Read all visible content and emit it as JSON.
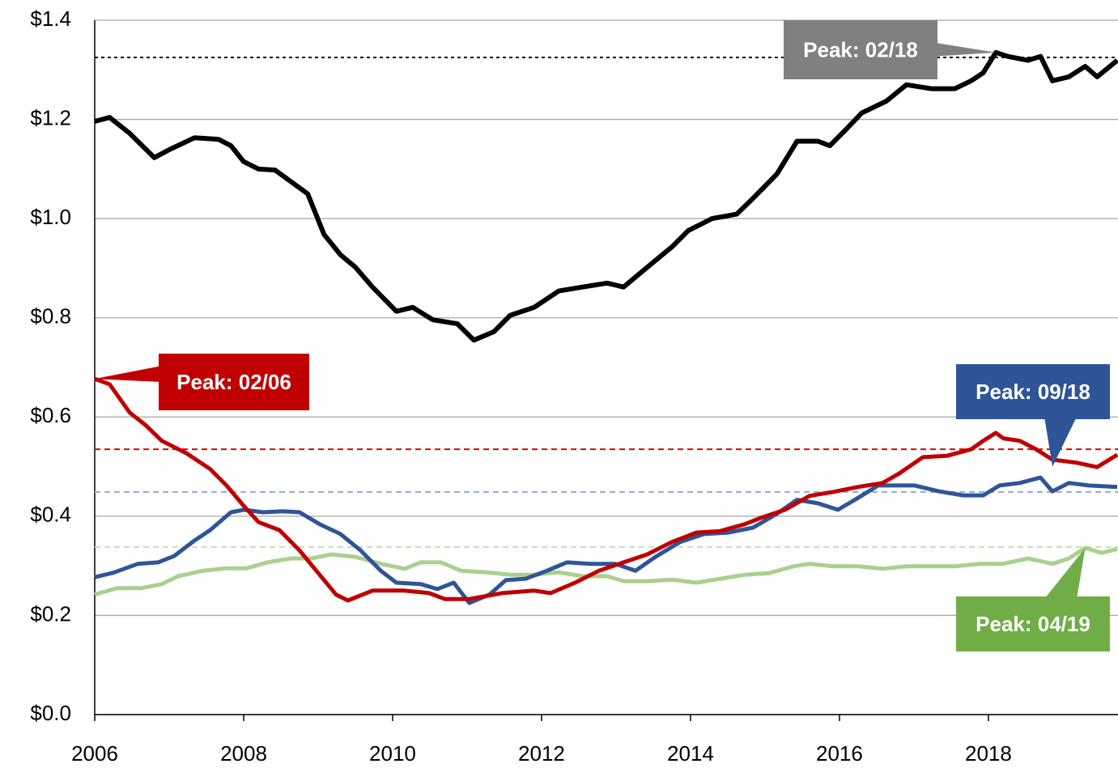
{
  "chart_data": {
    "type": "line",
    "xlim": [
      2006,
      2019.74
    ],
    "xticks": [
      2006,
      2008,
      2010,
      2012,
      2014,
      2016,
      2018
    ],
    "ylim": [
      0,
      1.4
    ],
    "yticks": [
      {
        "value": 0,
        "label": "$0.0"
      },
      {
        "value": 0.2,
        "label": "$0.2"
      },
      {
        "value": 0.4,
        "label": "$0.4"
      },
      {
        "value": 0.6,
        "label": "$0.6"
      },
      {
        "value": 0.8,
        "label": "$0.8"
      },
      {
        "value": 1.0,
        "label": "$1.0"
      },
      {
        "value": 1.2,
        "label": "$1.2"
      },
      {
        "value": 1.4,
        "label": "$1.4"
      }
    ],
    "grid": true,
    "series": [
      {
        "color": "#000000",
        "x": [
          2006.0,
          2006.2,
          2006.47,
          2006.8,
          2007.0,
          2007.34,
          2007.66,
          2007.83,
          2008.0,
          2008.2,
          2008.42,
          2008.64,
          2008.86,
          2009.08,
          2009.3,
          2009.5,
          2009.73,
          2010.05,
          2010.27,
          2010.54,
          2010.87,
          2011.09,
          2011.36,
          2011.58,
          2011.9,
          2012.23,
          2012.55,
          2012.88,
          2013.1,
          2013.42,
          2013.75,
          2013.97,
          2014.29,
          2014.62,
          2014.84,
          2015.16,
          2015.43,
          2015.71,
          2015.87,
          2016.09,
          2016.3,
          2016.63,
          2016.9,
          2017.23,
          2017.55,
          2017.77,
          2017.93,
          2018.1,
          2018.26,
          2018.53,
          2018.7,
          2018.86,
          2019.08,
          2019.3,
          2019.46,
          2019.73
        ],
        "values": [
          1.196,
          1.204,
          1.172,
          1.123,
          1.139,
          1.163,
          1.16,
          1.147,
          1.115,
          1.1,
          1.098,
          1.074,
          1.05,
          0.968,
          0.927,
          0.902,
          0.862,
          0.813,
          0.821,
          0.796,
          0.788,
          0.755,
          0.772,
          0.805,
          0.821,
          0.854,
          0.862,
          0.87,
          0.862,
          0.902,
          0.943,
          0.976,
          1.0,
          1.009,
          1.041,
          1.09,
          1.156,
          1.156,
          1.147,
          1.18,
          1.213,
          1.237,
          1.27,
          1.262,
          1.262,
          1.278,
          1.294,
          1.335,
          1.327,
          1.319,
          1.327,
          1.278,
          1.286,
          1.307,
          1.286,
          1.319
        ]
      },
      {
        "color": "#c00000",
        "x": [
          2006.0,
          2006.2,
          2006.47,
          2006.68,
          2006.9,
          2007.23,
          2007.55,
          2007.77,
          2008.0,
          2008.2,
          2008.48,
          2008.75,
          2009.02,
          2009.24,
          2009.4,
          2009.73,
          2010.16,
          2010.49,
          2010.7,
          2011.03,
          2011.47,
          2011.9,
          2012.12,
          2012.45,
          2012.77,
          2013.1,
          2013.42,
          2013.75,
          2014.08,
          2014.4,
          2014.73,
          2014.95,
          2015.27,
          2015.6,
          2015.92,
          2016.25,
          2016.58,
          2016.8,
          2017.12,
          2017.45,
          2017.77,
          2017.93,
          2018.1,
          2018.2,
          2018.42,
          2018.64,
          2018.86,
          2019.18,
          2019.46,
          2019.73
        ],
        "values": [
          0.677,
          0.666,
          0.609,
          0.584,
          0.552,
          0.527,
          0.495,
          0.462,
          0.421,
          0.388,
          0.372,
          0.331,
          0.282,
          0.242,
          0.23,
          0.25,
          0.25,
          0.245,
          0.233,
          0.233,
          0.245,
          0.25,
          0.245,
          0.266,
          0.29,
          0.307,
          0.323,
          0.348,
          0.367,
          0.37,
          0.384,
          0.397,
          0.413,
          0.441,
          0.449,
          0.459,
          0.467,
          0.486,
          0.519,
          0.522,
          0.535,
          0.552,
          0.568,
          0.557,
          0.552,
          0.535,
          0.514,
          0.508,
          0.499,
          0.524
        ]
      },
      {
        "color": "#2e5597",
        "x": [
          2006.0,
          2006.25,
          2006.58,
          2006.85,
          2007.07,
          2007.34,
          2007.55,
          2007.83,
          2008.0,
          2008.26,
          2008.53,
          2008.75,
          2009.02,
          2009.3,
          2009.57,
          2009.84,
          2010.05,
          2010.38,
          2010.6,
          2010.82,
          2011.03,
          2011.3,
          2011.52,
          2011.79,
          2012.07,
          2012.34,
          2012.66,
          2012.99,
          2013.26,
          2013.53,
          2013.86,
          2014.18,
          2014.51,
          2014.84,
          2015.16,
          2015.43,
          2015.71,
          2015.98,
          2016.25,
          2016.52,
          2016.8,
          2017.01,
          2017.34,
          2017.66,
          2017.93,
          2018.15,
          2018.42,
          2018.7,
          2018.86,
          2019.08,
          2019.35,
          2019.73
        ],
        "values": [
          0.277,
          0.286,
          0.304,
          0.307,
          0.32,
          0.351,
          0.372,
          0.408,
          0.413,
          0.408,
          0.41,
          0.408,
          0.384,
          0.364,
          0.331,
          0.29,
          0.266,
          0.263,
          0.253,
          0.266,
          0.225,
          0.242,
          0.271,
          0.274,
          0.29,
          0.307,
          0.304,
          0.304,
          0.29,
          0.318,
          0.348,
          0.364,
          0.367,
          0.377,
          0.405,
          0.433,
          0.426,
          0.413,
          0.437,
          0.462,
          0.462,
          0.462,
          0.45,
          0.442,
          0.442,
          0.462,
          0.467,
          0.478,
          0.45,
          0.467,
          0.462,
          0.459
        ]
      },
      {
        "color": "#a9d18e",
        "x": [
          2006.0,
          2006.3,
          2006.63,
          2006.9,
          2007.12,
          2007.45,
          2007.77,
          2008.04,
          2008.32,
          2008.64,
          2008.91,
          2009.18,
          2009.5,
          2009.84,
          2010.16,
          2010.38,
          2010.65,
          2010.92,
          2011.25,
          2011.58,
          2011.9,
          2012.23,
          2012.55,
          2012.88,
          2013.1,
          2013.42,
          2013.75,
          2014.08,
          2014.4,
          2014.73,
          2015.05,
          2015.38,
          2015.6,
          2015.92,
          2016.25,
          2016.58,
          2016.9,
          2017.23,
          2017.55,
          2017.88,
          2018.2,
          2018.53,
          2018.86,
          2019.08,
          2019.3,
          2019.52,
          2019.73
        ],
        "values": [
          0.242,
          0.255,
          0.255,
          0.263,
          0.279,
          0.29,
          0.295,
          0.295,
          0.307,
          0.315,
          0.315,
          0.323,
          0.318,
          0.304,
          0.294,
          0.307,
          0.307,
          0.29,
          0.287,
          0.282,
          0.282,
          0.287,
          0.279,
          0.279,
          0.269,
          0.269,
          0.272,
          0.266,
          0.274,
          0.282,
          0.285,
          0.299,
          0.304,
          0.299,
          0.299,
          0.294,
          0.299,
          0.299,
          0.299,
          0.304,
          0.304,
          0.315,
          0.304,
          0.315,
          0.336,
          0.326,
          0.334
        ]
      }
    ],
    "reference_lines": [
      {
        "value": 1.325,
        "color": "#000000"
      },
      {
        "value": 0.535,
        "color": "#e00000"
      },
      {
        "value": 0.449,
        "color": "#8eaadb"
      },
      {
        "value": 0.338,
        "color": "#c5e0b4"
      }
    ],
    "annotations": [
      {
        "text": "Peak: 02/18",
        "x": 2018.1,
        "y": 1.335,
        "color": "#808080"
      },
      {
        "text": "Peak: 02/06",
        "x": 2006.0,
        "y": 0.677,
        "color": "#c00000"
      },
      {
        "text": "Peak: 09/18",
        "x": 2018.86,
        "y": 0.5,
        "color": "#2e5597"
      },
      {
        "text": "Peak: 04/19",
        "x": 2019.3,
        "y": 0.336,
        "color": "#70ad47"
      }
    ]
  }
}
